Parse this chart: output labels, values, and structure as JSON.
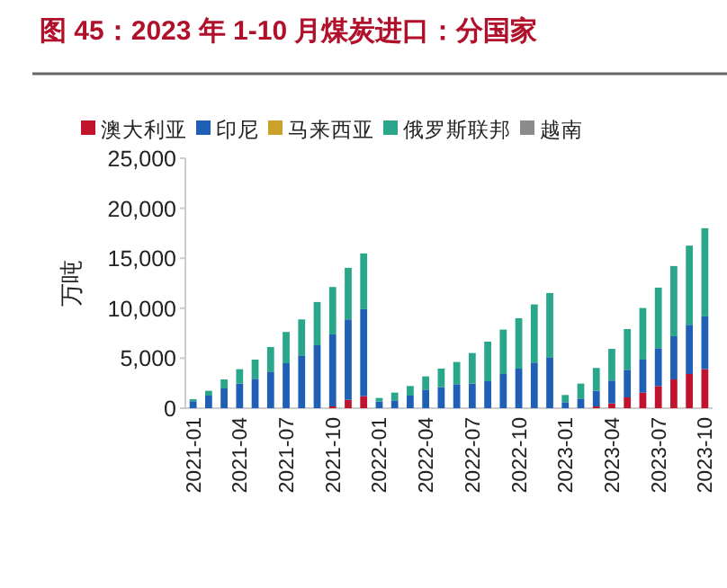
{
  "chart_data": {
    "type": "bar",
    "stacked": true,
    "title": "图 45：2023 年 1-10 月煤炭进口：分国家",
    "ylabel": "万吨",
    "categories": [
      "2021-01",
      null,
      null,
      "2021-04",
      null,
      null,
      "2021-07",
      null,
      null,
      "2021-10",
      null,
      null,
      "2022-01",
      null,
      null,
      "2022-04",
      null,
      null,
      "2022-07",
      null,
      null,
      "2022-10",
      null,
      null,
      "2023-01",
      null,
      null,
      "2023-04",
      null,
      null,
      "2023-07",
      null,
      null,
      "2023-10"
    ],
    "series": [
      {
        "name": "澳大利亚",
        "color": "#c0132d",
        "values": [
          0,
          0,
          0,
          0,
          0,
          0,
          0,
          0,
          0,
          180,
          840,
          1200,
          0,
          0,
          0,
          0,
          0,
          0,
          0,
          0,
          0,
          0,
          0,
          0,
          0,
          0,
          180,
          480,
          1080,
          1560,
          2220,
          2880,
          3420,
          3900
        ]
      },
      {
        "name": "印尼",
        "color": "#1f5fb5",
        "values": [
          700,
          1260,
          1980,
          2460,
          2940,
          3660,
          4500,
          5280,
          6300,
          7200,
          8040,
          8700,
          660,
          780,
          1260,
          1860,
          2100,
          2400,
          2460,
          2700,
          3420,
          3960,
          4560,
          5100,
          600,
          960,
          1560,
          2280,
          2760,
          3300,
          3780,
          4320,
          4920,
          5280
        ]
      },
      {
        "name": "马来西亚",
        "color": "#c9a227",
        "values": [
          null,
          null,
          null,
          null,
          null,
          null,
          null,
          null,
          null,
          null,
          null,
          null,
          null,
          null,
          null,
          null,
          null,
          null,
          null,
          null,
          null,
          null,
          null,
          null,
          null,
          null,
          null,
          null,
          null,
          null,
          null,
          null,
          null,
          null
        ]
      },
      {
        "name": "俄罗斯联邦",
        "color": "#2aa68a",
        "values": [
          200,
          480,
          900,
          1440,
          1920,
          2460,
          3120,
          3600,
          4320,
          4740,
          5160,
          5580,
          360,
          780,
          960,
          1320,
          1860,
          2220,
          3060,
          3960,
          4440,
          5040,
          5820,
          6420,
          720,
          1500,
          2280,
          3180,
          4080,
          5160,
          6060,
          7020,
          7920,
          8820
        ]
      },
      {
        "name": "越南",
        "color": "#8c8c8c",
        "values": [
          null,
          null,
          null,
          null,
          null,
          null,
          null,
          null,
          null,
          null,
          null,
          null,
          null,
          null,
          null,
          null,
          null,
          null,
          null,
          null,
          null,
          null,
          null,
          null,
          null,
          null,
          null,
          null,
          null,
          null,
          null,
          null,
          null,
          null
        ]
      }
    ],
    "ylim": [
      0,
      25000
    ],
    "yticks": [
      {
        "value": 0,
        "label": "0"
      },
      {
        "value": 5000,
        "label": "5,000"
      },
      {
        "value": 10000,
        "label": "10,000"
      },
      {
        "value": 15000,
        "label": "15,000"
      },
      {
        "value": 20000,
        "label": "20,000"
      },
      {
        "value": 25000,
        "label": "25,000"
      }
    ],
    "legend": "top",
    "grid": false
  }
}
